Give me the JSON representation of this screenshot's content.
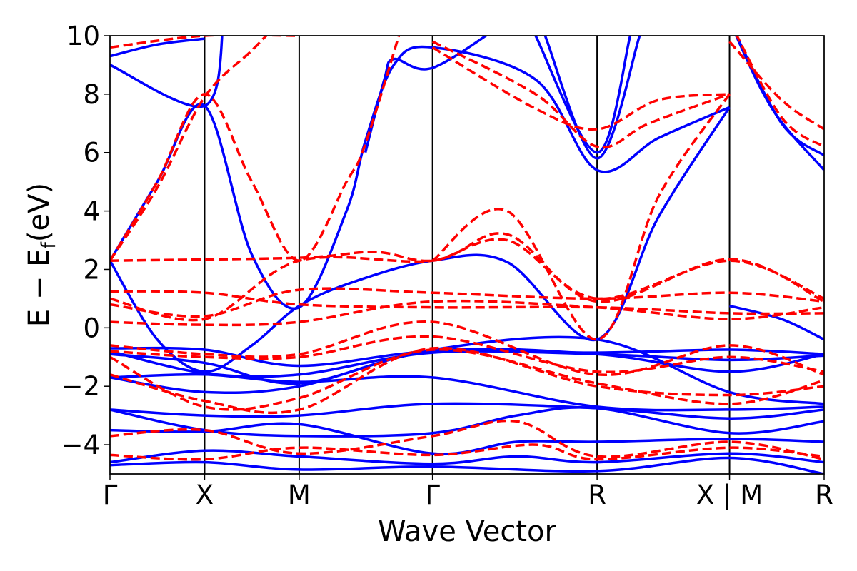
{
  "chart_data": {
    "type": "line",
    "xlabel": "Wave Vector",
    "ylabel": "E − E",
    "ylabel_sub": "f",
    "ylabel_unit": "(eV)",
    "ylim": [
      -5,
      10
    ],
    "yticks": [
      {
        "value": -4,
        "label": "−4"
      },
      {
        "value": -2,
        "label": "−2"
      },
      {
        "value": 0,
        "label": "0"
      },
      {
        "value": 2,
        "label": "2"
      },
      {
        "value": 4,
        "label": "4"
      },
      {
        "value": 6,
        "label": "6"
      },
      {
        "value": 8,
        "label": "8"
      },
      {
        "value": 10,
        "label": "10"
      }
    ],
    "kpoints": [
      {
        "label": "Γ",
        "pos": 0
      },
      {
        "label": "X",
        "pos": 1
      },
      {
        "label": "M",
        "pos": 2
      },
      {
        "label": "Γ",
        "pos": 3.41
      },
      {
        "label": "R",
        "pos": 5.15
      },
      {
        "label": "X | M",
        "pos": 6.55
      },
      {
        "label": "R",
        "pos": 7.55
      }
    ],
    "grid": false,
    "legend": "none",
    "colors": {
      "series_a": "#0000ff",
      "series_b": "#ff0000"
    },
    "series": [
      {
        "style": "solid",
        "bands": [
          [
            [
              0,
              -4.7
            ],
            [
              1,
              -4.6
            ],
            [
              2,
              -4.85
            ],
            [
              3.41,
              -4.75
            ],
            [
              5.15,
              -4.9
            ],
            [
              6.55,
              -4.45
            ],
            [
              7.55,
              -5.0
            ]
          ],
          [
            [
              0,
              -4.6
            ],
            [
              1,
              -4.2
            ],
            [
              2,
              -4.4
            ],
            [
              3.41,
              -4.65
            ],
            [
              4.3,
              -4.4
            ],
            [
              5.15,
              -4.6
            ],
            [
              6.55,
              -4.3
            ],
            [
              7.55,
              -4.6
            ]
          ],
          [
            [
              0,
              -3.5
            ],
            [
              1,
              -3.55
            ],
            [
              2,
              -3.3
            ],
            [
              3.41,
              -4.3
            ],
            [
              4.3,
              -3.9
            ],
            [
              5.15,
              -3.9
            ],
            [
              6.55,
              -3.8
            ],
            [
              7.55,
              -3.9
            ]
          ],
          [
            [
              0,
              -2.8
            ],
            [
              1,
              -3.5
            ],
            [
              2,
              -3.7
            ],
            [
              3.41,
              -3.6
            ],
            [
              4.3,
              -3.0
            ],
            [
              5.15,
              -2.75
            ],
            [
              6.55,
              -3.6
            ],
            [
              7.55,
              -3.2
            ]
          ],
          [
            [
              0,
              -2.8
            ],
            [
              1,
              -3.0
            ],
            [
              2,
              -3.0
            ],
            [
              3.41,
              -2.6
            ],
            [
              5.15,
              -2.75
            ],
            [
              6.55,
              -3.1
            ],
            [
              7.55,
              -2.8
            ]
          ],
          [
            [
              0,
              -1.7
            ],
            [
              1,
              -1.6
            ],
            [
              2,
              -1.85
            ],
            [
              3.41,
              -1.7
            ],
            [
              5.15,
              -2.7
            ],
            [
              6.55,
              -2.8
            ],
            [
              7.55,
              -2.7
            ]
          ],
          [
            [
              0,
              -1.7
            ],
            [
              1,
              -2.2
            ],
            [
              2,
              -2.0
            ],
            [
              3.41,
              -0.8
            ],
            [
              5.15,
              -0.9
            ],
            [
              6.55,
              -1.5
            ],
            [
              7.55,
              -0.9
            ]
          ],
          [
            [
              0,
              -0.8
            ],
            [
              1,
              -1.55
            ],
            [
              2,
              -1.6
            ],
            [
              3.41,
              -0.85
            ],
            [
              5.15,
              -0.9
            ],
            [
              6.55,
              -1.1
            ],
            [
              7.55,
              -0.95
            ]
          ],
          [
            [
              0,
              -0.7
            ],
            [
              1,
              -0.75
            ],
            [
              2,
              -1.3
            ],
            [
              3.41,
              -0.8
            ],
            [
              5.15,
              -0.85
            ],
            [
              6.55,
              -0.75
            ],
            [
              7.55,
              -0.9
            ]
          ],
          [
            [
              0,
              -0.9
            ],
            [
              1,
              -1.2
            ],
            [
              2,
              -1.9
            ],
            [
              3.41,
              -0.75
            ],
            [
              5.15,
              -0.4
            ],
            [
              6.55,
              -2.2
            ],
            [
              7.55,
              -2.6
            ]
          ],
          [
            [
              0,
              2.3
            ],
            [
              0.5,
              -0.4
            ],
            [
              1,
              -1.5
            ],
            [
              1.5,
              -0.6
            ],
            [
              2,
              0.75
            ],
            [
              2.6,
              1.6
            ],
            [
              3.41,
              2.3
            ],
            [
              4.2,
              2.25
            ],
            [
              5.15,
              -0.4
            ],
            [
              5.8,
              3.8
            ],
            [
              6.55,
              7.55
            ]
          ],
          [
            [
              0,
              2.3
            ],
            [
              0.5,
              5.0
            ],
            [
              1,
              7.6
            ],
            [
              1.5,
              2.5
            ],
            [
              2,
              0.7
            ],
            [
              2.5,
              4.0
            ],
            [
              2.7,
              6.4
            ],
            [
              3.0,
              9.0
            ],
            [
              3.41,
              9.6
            ],
            [
              4.5,
              8.5
            ],
            [
              5.15,
              5.4
            ],
            [
              5.8,
              6.5
            ],
            [
              6.55,
              7.55
            ]
          ],
          [
            [
              0,
              9.0
            ],
            [
              1,
              7.6
            ],
            [
              1.2,
              10.5
            ]
          ],
          [
            [
              0,
              9.3
            ],
            [
              0.5,
              9.7
            ],
            [
              1,
              9.9
            ]
          ],
          [
            [
              2.7,
              6.0
            ],
            [
              2.9,
              8.5
            ],
            [
              3.0,
              9.2
            ],
            [
              3.41,
              8.9
            ],
            [
              4.2,
              10.5
            ]
          ],
          [
            [
              4.6,
              10.0
            ],
            [
              5.15,
              5.8
            ],
            [
              5.6,
              10.0
            ]
          ],
          [
            [
              4.5,
              10.0
            ],
            [
              5.15,
              6.0
            ],
            [
              5.5,
              10.0
            ]
          ],
          [
            [
              6.55,
              0.75
            ],
            [
              7.1,
              0.3
            ],
            [
              7.55,
              -0.4
            ]
          ],
          [
            [
              6.55,
              10.5
            ],
            [
              7.0,
              7.5
            ],
            [
              7.55,
              5.4
            ]
          ],
          [
            [
              6.55,
              10.5
            ],
            [
              7.1,
              7.0
            ],
            [
              7.55,
              5.9
            ]
          ]
        ]
      },
      {
        "style": "dashed",
        "bands": [
          [
            [
              0,
              -4.35
            ],
            [
              1,
              -4.5
            ],
            [
              2,
              -4.1
            ],
            [
              3.41,
              -4.35
            ],
            [
              4.5,
              -4.0
            ],
            [
              5.15,
              -4.5
            ],
            [
              6.55,
              -4.1
            ],
            [
              7.55,
              -4.4
            ]
          ],
          [
            [
              0,
              -3.7
            ],
            [
              1,
              -3.5
            ],
            [
              2,
              -4.3
            ],
            [
              3.41,
              -3.7
            ],
            [
              4.3,
              -3.2
            ],
            [
              5.15,
              -4.4
            ],
            [
              6.55,
              -3.9
            ],
            [
              7.55,
              -4.5
            ]
          ],
          [
            [
              0,
              -1.6
            ],
            [
              1,
              -2.5
            ],
            [
              2,
              -2.8
            ],
            [
              3.41,
              -0.7
            ],
            [
              5.15,
              -2.0
            ],
            [
              6.55,
              -2.3
            ],
            [
              7.55,
              -2.0
            ]
          ],
          [
            [
              0,
              -1.0
            ],
            [
              1,
              -2.7
            ],
            [
              2,
              -2.4
            ],
            [
              3.41,
              -0.75
            ],
            [
              5.15,
              -1.9
            ],
            [
              6.55,
              -2.6
            ],
            [
              7.55,
              -1.8
            ]
          ],
          [
            [
              0,
              -0.8
            ],
            [
              1,
              -1.0
            ],
            [
              2,
              -1.0
            ],
            [
              3.41,
              -0.3
            ],
            [
              5.15,
              -1.5
            ],
            [
              6.55,
              -1.0
            ],
            [
              7.55,
              -1.5
            ]
          ],
          [
            [
              0,
              -0.6
            ],
            [
              1,
              -0.9
            ],
            [
              2,
              -0.9
            ],
            [
              3.41,
              0.2
            ],
            [
              5.15,
              -1.6
            ],
            [
              6.55,
              -0.6
            ],
            [
              7.55,
              -1.6
            ]
          ],
          [
            [
              0,
              0.2
            ],
            [
              1,
              0.1
            ],
            [
              2,
              0.2
            ],
            [
              3.41,
              0.9
            ],
            [
              5.15,
              0.7
            ],
            [
              6.55,
              0.3
            ],
            [
              7.55,
              0.7
            ]
          ],
          [
            [
              0,
              0.8
            ],
            [
              1,
              0.4
            ],
            [
              2,
              1.3
            ],
            [
              3.41,
              1.2
            ],
            [
              5.15,
              1.0
            ],
            [
              6.55,
              1.2
            ],
            [
              7.55,
              0.9
            ]
          ],
          [
            [
              0,
              1.25
            ],
            [
              1,
              1.2
            ],
            [
              2,
              0.8
            ],
            [
              3.41,
              0.7
            ],
            [
              5.15,
              0.7
            ],
            [
              6.55,
              0.5
            ],
            [
              7.55,
              0.5
            ]
          ],
          [
            [
              0,
              1.0
            ],
            [
              1,
              0.3
            ],
            [
              2,
              2.3
            ],
            [
              3.41,
              2.3
            ],
            [
              4.2,
              3.2
            ],
            [
              5.15,
              0.9
            ],
            [
              6.55,
              2.35
            ],
            [
              7.55,
              0.9
            ]
          ],
          [
            [
              0,
              2.3
            ],
            [
              2,
              2.4
            ],
            [
              2.8,
              2.6
            ],
            [
              3.41,
              2.3
            ],
            [
              4.2,
              3.0
            ],
            [
              5.15,
              1.0
            ],
            [
              6.55,
              2.3
            ],
            [
              7.55,
              1.0
            ]
          ],
          [
            [
              0,
              2.3
            ],
            [
              0.5,
              5.0
            ],
            [
              1,
              8.0
            ],
            [
              1.5,
              5.0
            ],
            [
              2,
              2.3
            ],
            [
              2.5,
              5.0
            ],
            [
              2.7,
              6.3
            ],
            [
              3.1,
              10.5
            ]
          ],
          [
            [
              0,
              2.3
            ],
            [
              0.5,
              4.8
            ],
            [
              1,
              7.9
            ],
            [
              1.5,
              9.5
            ],
            [
              1.8,
              10.5
            ]
          ],
          [
            [
              3.41,
              2.3
            ],
            [
              4.2,
              4.0
            ],
            [
              5.15,
              -0.4
            ],
            [
              5.8,
              4.5
            ],
            [
              6.55,
              8.0
            ]
          ],
          [
            [
              0,
              9.6
            ],
            [
              1,
              10.0
            ],
            [
              2,
              10.0
            ]
          ],
          [
            [
              3.41,
              9.6
            ],
            [
              4.5,
              7.5
            ],
            [
              5.15,
              6.8
            ],
            [
              5.8,
              7.8
            ],
            [
              6.55,
              8.0
            ]
          ],
          [
            [
              3.41,
              9.8
            ],
            [
              4.5,
              8.0
            ],
            [
              5.15,
              6.2
            ],
            [
              5.7,
              7.0
            ],
            [
              6.55,
              8.0
            ]
          ],
          [
            [
              6.55,
              9.8
            ],
            [
              7.1,
              7.8
            ],
            [
              7.55,
              6.8
            ]
          ],
          [
            [
              6.55,
              10.5
            ],
            [
              7.1,
              7.2
            ],
            [
              7.55,
              6.2
            ]
          ]
        ]
      }
    ]
  }
}
